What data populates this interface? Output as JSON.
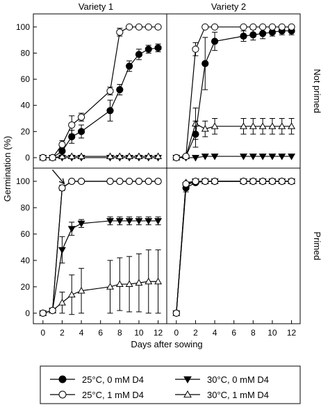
{
  "chart_data": {
    "type": "scatter",
    "xlabel": "Days after sowing",
    "ylabel": "Germination (%)",
    "xlim": [
      -1,
      12.9
    ],
    "ylim": [
      -8,
      110
    ],
    "xticks": [
      0,
      2,
      4,
      6,
      8,
      10,
      12
    ],
    "yticks": [
      0,
      20,
      40,
      60,
      80,
      100
    ],
    "columns": [
      "Variety 1",
      "Variety 2"
    ],
    "rows": [
      "Not primed",
      "Primed"
    ],
    "legend": {
      "placement": "bottom"
    },
    "series": [
      {
        "name": "25°C, 0 mM D4",
        "marker": "circle",
        "fill": "#000000"
      },
      {
        "name": "30°C, 0 mM D4",
        "marker": "triangle-down",
        "fill": "#000000"
      },
      {
        "name": "25°C, 1 mM D4",
        "marker": "circle",
        "fill": "#ffffff"
      },
      {
        "name": "30°C, 1 mM D4",
        "marker": "triangle-up",
        "fill": "#ffffff"
      }
    ],
    "panels": [
      {
        "column": "Variety 1",
        "row": "Not primed",
        "series": [
          {
            "x": [
              0,
              1,
              2,
              3,
              4,
              7,
              8,
              9,
              10,
              11,
              12
            ],
            "y": [
              0,
              0,
              5,
              16,
              20,
              36,
              52,
              70,
              79,
              83,
              84
            ],
            "err": [
              0,
              0,
              3,
              5,
              5,
              8,
              4,
              4,
              4,
              3,
              3
            ]
          },
          {
            "x": [
              0,
              1,
              2,
              3,
              4,
              7,
              8,
              9,
              10,
              11,
              12
            ],
            "y": [
              0,
              0,
              0,
              0,
              0,
              0,
              0,
              0,
              0,
              0,
              0
            ],
            "err": [
              0,
              0,
              0,
              0,
              0,
              0,
              0,
              0,
              0,
              0,
              0
            ]
          },
          {
            "x": [
              0,
              1,
              2,
              3,
              4,
              7,
              8,
              9,
              10,
              11,
              12
            ],
            "y": [
              0,
              0,
              10,
              25,
              31,
              51,
              96,
              100,
              100,
              100,
              100
            ],
            "err": [
              0,
              0,
              3,
              7,
              3,
              3,
              3,
              0,
              0,
              0,
              0
            ]
          },
          {
            "x": [
              0,
              1,
              2,
              3,
              4,
              7,
              8,
              9,
              10,
              11,
              12
            ],
            "y": [
              0,
              0,
              1,
              1,
              1,
              1,
              1,
              1,
              1,
              1,
              1
            ],
            "err": [
              0,
              0,
              0,
              0,
              0,
              0,
              0,
              0,
              0,
              0,
              0
            ]
          }
        ]
      },
      {
        "column": "Variety 2",
        "row": "Not primed",
        "series": [
          {
            "x": [
              0,
              1,
              2,
              3,
              4,
              7,
              8,
              9,
              10,
              11,
              12
            ],
            "y": [
              0,
              1,
              18,
              72,
              89,
              93,
              94,
              95,
              96,
              97,
              97
            ],
            "err": [
              0,
              0,
              10,
              20,
              7,
              4,
              4,
              4,
              3,
              3,
              3
            ]
          },
          {
            "x": [
              0,
              1,
              2,
              3,
              4,
              7,
              8,
              9,
              10,
              11,
              12
            ],
            "y": [
              0,
              0,
              0,
              1,
              1,
              1,
              1,
              1,
              1,
              1,
              1
            ],
            "err": [
              0,
              0,
              0,
              0,
              0,
              0,
              0,
              0,
              0,
              0,
              0
            ]
          },
          {
            "x": [
              0,
              1,
              2,
              3,
              4,
              7,
              8,
              9,
              10,
              11,
              12
            ],
            "y": [
              0,
              1,
              83,
              100,
              100,
              100,
              100,
              100,
              100,
              100,
              100
            ],
            "err": [
              0,
              0,
              5,
              0,
              0,
              0,
              0,
              0,
              0,
              0,
              0
            ]
          },
          {
            "x": [
              0,
              1,
              2,
              3,
              4,
              7,
              8,
              9,
              10,
              11,
              12
            ],
            "y": [
              0,
              1,
              26,
              22,
              24,
              24,
              24,
              24,
              24,
              24,
              24
            ],
            "err": [
              0,
              0,
              12,
              6,
              6,
              6,
              6,
              6,
              6,
              6,
              6
            ]
          }
        ]
      },
      {
        "column": "Variety 1",
        "row": "Primed",
        "series": [
          {
            "x": [
              0,
              1,
              2,
              3,
              4,
              7,
              8,
              9,
              10,
              11,
              12
            ],
            "y": [
              0,
              2,
              95,
              100,
              100,
              100,
              100,
              100,
              100,
              100,
              100
            ],
            "err": [
              0,
              0,
              2,
              0,
              0,
              0,
              0,
              0,
              0,
              0,
              0
            ]
          },
          {
            "x": [
              0,
              1,
              2,
              3,
              4,
              7,
              8,
              9,
              10,
              11,
              12
            ],
            "y": [
              0,
              2,
              48,
              64,
              68,
              70,
              70,
              70,
              70,
              70,
              70
            ],
            "err": [
              0,
              0,
              10,
              5,
              3,
              3,
              3,
              3,
              3,
              3,
              3
            ]
          },
          {
            "x": [
              0,
              1,
              2,
              3,
              4,
              7,
              8,
              9,
              10,
              11,
              12
            ],
            "y": [
              0,
              2,
              95,
              100,
              100,
              100,
              100,
              100,
              100,
              100,
              100
            ],
            "err": [
              0,
              0,
              2,
              0,
              0,
              0,
              0,
              0,
              0,
              0,
              0
            ]
          },
          {
            "x": [
              0,
              1,
              2,
              3,
              4,
              7,
              8,
              9,
              10,
              11,
              12
            ],
            "y": [
              0,
              2,
              8,
              14,
              17,
              20,
              22,
              22,
              23,
              24,
              24
            ],
            "err": [
              0,
              0,
              8,
              15,
              17,
              20,
              20,
              21,
              22,
              24,
              24
            ]
          }
        ]
      },
      {
        "column": "Variety 2",
        "row": "Primed",
        "series": [
          {
            "x": [
              0,
              1,
              2,
              3,
              4,
              7,
              8,
              9,
              10,
              11,
              12
            ],
            "y": [
              0,
              95,
              99,
              100,
              100,
              100,
              100,
              100,
              100,
              100,
              100
            ],
            "err": [
              0,
              3,
              0,
              0,
              0,
              0,
              0,
              0,
              0,
              0,
              0
            ]
          },
          {
            "x": [
              0,
              1,
              2,
              3,
              4,
              7,
              8,
              9,
              10,
              11,
              12
            ],
            "y": [
              0,
              97,
              100,
              100,
              100,
              100,
              100,
              100,
              100,
              100,
              100
            ],
            "err": [
              0,
              0,
              0,
              0,
              0,
              0,
              0,
              0,
              0,
              0,
              0
            ]
          },
          {
            "x": [
              0,
              1,
              2,
              3,
              4,
              7,
              8,
              9,
              10,
              11,
              12
            ],
            "y": [
              0,
              98,
              100,
              100,
              100,
              100,
              100,
              100,
              100,
              100,
              100
            ],
            "err": [
              0,
              0,
              0,
              0,
              0,
              0,
              0,
              0,
              0,
              0,
              0
            ]
          },
          {
            "x": [
              0,
              1,
              2,
              3,
              4,
              7,
              8,
              9,
              10,
              11,
              12
            ],
            "y": [
              0,
              99,
              100,
              100,
              100,
              100,
              100,
              100,
              100,
              100,
              100
            ],
            "err": [
              0,
              0,
              0,
              0,
              0,
              0,
              0,
              0,
              0,
              0,
              0
            ]
          }
        ]
      }
    ],
    "annotations": [
      {
        "panel": 2,
        "type": "arrow",
        "points_to": {
          "x": 2,
          "y": 95
        }
      }
    ]
  }
}
